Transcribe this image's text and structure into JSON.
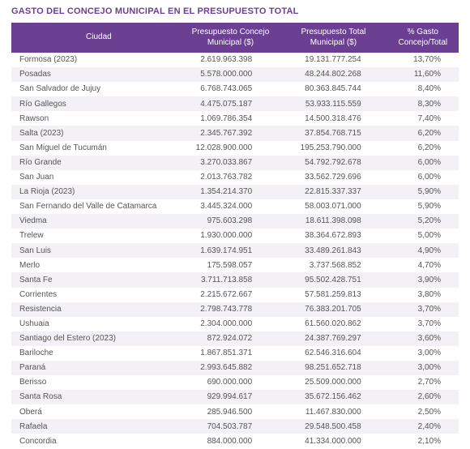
{
  "title": "GASTO DEL CONCEJO MUNICIPAL EN EL PRESUPUESTO TOTAL",
  "colors": {
    "header_bg": "#6b3f91",
    "header_text": "#ffffff",
    "title_color": "#6b3f91",
    "row_alt_bg": "#f3f1f5",
    "row_bg": "#ffffff",
    "cell_text": "#555555"
  },
  "table": {
    "columns": [
      "Ciudad",
      "Presupuesto Concejo Municipal ($)",
      "Presupuesto Total Municipal ($)",
      "% Gasto Concejo/Total"
    ],
    "rows": [
      [
        "Formosa (2023)",
        "2.619.963.398",
        "19.131.777.254",
        "13,70%"
      ],
      [
        "Posadas",
        "5.578.000.000",
        "48.244.802.268",
        "11,60%"
      ],
      [
        "San Salvador de Jujuy",
        "6.768.743.065",
        "80.363.845.744",
        "8,40%"
      ],
      [
        "Río Gallegos",
        "4.475.075.187",
        "53.933.115.559",
        "8,30%"
      ],
      [
        "Rawson",
        "1.069.786.354",
        "14.500.318.476",
        "7,40%"
      ],
      [
        "Salta (2023)",
        "2.345.767.392",
        "37.854.768.715",
        "6,20%"
      ],
      [
        "San Miguel de Tucumán",
        "12.028.900.000",
        "195.253.790.000",
        "6,20%"
      ],
      [
        "Río Grande",
        "3.270.033.867",
        "54.792.792.678",
        "6,00%"
      ],
      [
        "San Juan",
        "2.013.763.782",
        "33.562.729.696",
        "6,00%"
      ],
      [
        "La Rioja (2023)",
        "1.354.214.370",
        "22.815.337.337",
        "5,90%"
      ],
      [
        "San Fernando del Valle de Catamarca",
        "3.445.324.000",
        "58.003.071.000",
        "5,90%"
      ],
      [
        "Viedma",
        "975.603.298",
        "18.611.398.098",
        "5,20%"
      ],
      [
        "Trelew",
        "1.930.000.000",
        "38.364.672.893",
        "5,00%"
      ],
      [
        "San Luis",
        "1.639.174.951",
        "33.489.261.843",
        "4,90%"
      ],
      [
        "Merlo",
        "175.598.057",
        "3.737.568.852",
        "4,70%"
      ],
      [
        "Santa Fe",
        "3.711.713.858",
        "95.502.428.751",
        "3,90%"
      ],
      [
        "Corrientes",
        "2.215.672.667",
        "57.581.259.813",
        "3,80%"
      ],
      [
        "Resistencia",
        "2.798.743.778",
        "76.383.201.705",
        "3,70%"
      ],
      [
        "Ushuaia",
        "2.304.000.000",
        "61.560.020.862",
        "3,70%"
      ],
      [
        "Santiago del Estero (2023)",
        "872.924.072",
        "24.387.769.297",
        "3,60%"
      ],
      [
        "Bariloche",
        "1.867.851.371",
        "62.546.316.604",
        "3,00%"
      ],
      [
        "Paraná",
        "2.993.645.882",
        "98.251.652.718",
        "3,00%"
      ],
      [
        "Berisso",
        "690.000.000",
        "25.509.000.000",
        "2,70%"
      ],
      [
        "Santa Rosa",
        "929.994.617",
        "35.672.156.462",
        "2,60%"
      ],
      [
        "Oberá",
        "285.946.500",
        "11.467.830.000",
        "2,50%"
      ],
      [
        "Rafaela",
        "704.503.787",
        "29.548.500.458",
        "2,40%"
      ],
      [
        "Concordia",
        "884.000.000",
        "41.334.000.000",
        "2,10%"
      ]
    ]
  }
}
